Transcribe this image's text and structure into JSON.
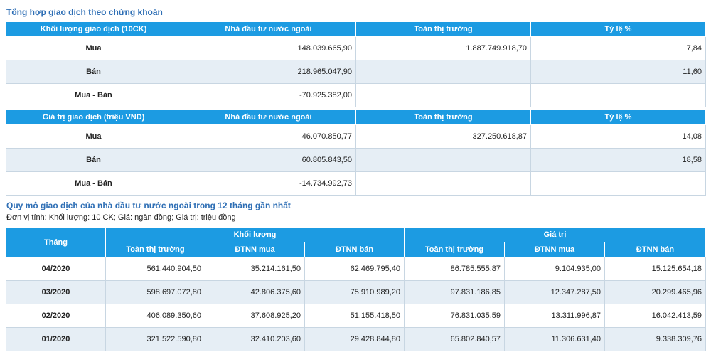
{
  "section1": {
    "title": "Tổng hợp giao dịch theo chứng khoán",
    "volume_table": {
      "headers": [
        "Khối lượng giao dịch (10CK)",
        "Nhà đầu tư nước ngoài",
        "Toàn thị trường",
        "Tỷ lệ %"
      ],
      "rows": [
        {
          "label": "Mua",
          "foreign": "148.039.665,90",
          "market": "1.887.749.918,70",
          "ratio": "7,84"
        },
        {
          "label": "Bán",
          "foreign": "218.965.047,90",
          "market": "",
          "ratio": "11,60"
        },
        {
          "label": "Mua - Bán",
          "foreign": "-70.925.382,00",
          "market": "",
          "ratio": ""
        }
      ]
    },
    "value_table": {
      "headers": [
        "Giá trị giao dịch (triệu VND)",
        "Nhà đầu tư nước ngoài",
        "Toàn thị trường",
        "Tỷ lệ %"
      ],
      "rows": [
        {
          "label": "Mua",
          "foreign": "46.070.850,77",
          "market": "327.250.618,87",
          "ratio": "14,08"
        },
        {
          "label": "Bán",
          "foreign": "60.805.843,50",
          "market": "",
          "ratio": "18,58"
        },
        {
          "label": "Mua - Bán",
          "foreign": "-14.734.992,73",
          "market": "",
          "ratio": ""
        }
      ]
    }
  },
  "section2": {
    "title": "Quy mô giao dịch của nhà đầu tư nước ngoài trong 12 tháng gần nhất",
    "unit_note": "Đơn vị tính: Khối lượng: 10 CK; Giá: ngàn đồng; Giá trị: triệu đồng",
    "headers": {
      "month": "Tháng",
      "volume_group": "Khối lượng",
      "value_group": "Giá trị",
      "sub": [
        "Toàn thị trường",
        "ĐTNN mua",
        "ĐTNN bán",
        "Toàn thị trường",
        "ĐTNN mua",
        "ĐTNN bán"
      ]
    },
    "rows": [
      {
        "month": "04/2020",
        "v_market": "561.440.904,50",
        "v_buy": "35.214.161,50",
        "v_sell": "62.469.795,40",
        "g_market": "86.785.555,87",
        "g_buy": "9.104.935,00",
        "g_sell": "15.125.654,18"
      },
      {
        "month": "03/2020",
        "v_market": "598.697.072,80",
        "v_buy": "42.806.375,60",
        "v_sell": "75.910.989,20",
        "g_market": "97.831.186,85",
        "g_buy": "12.347.287,50",
        "g_sell": "20.299.465,96"
      },
      {
        "month": "02/2020",
        "v_market": "406.089.350,60",
        "v_buy": "37.608.925,20",
        "v_sell": "51.155.418,50",
        "g_market": "76.831.035,59",
        "g_buy": "13.311.996,87",
        "g_sell": "16.042.413,59"
      },
      {
        "month": "01/2020",
        "v_market": "321.522.590,80",
        "v_buy": "32.410.203,60",
        "v_sell": "29.428.844,80",
        "g_market": "65.802.840,57",
        "g_buy": "11.306.631,40",
        "g_sell": "9.338.309,76"
      }
    ]
  }
}
